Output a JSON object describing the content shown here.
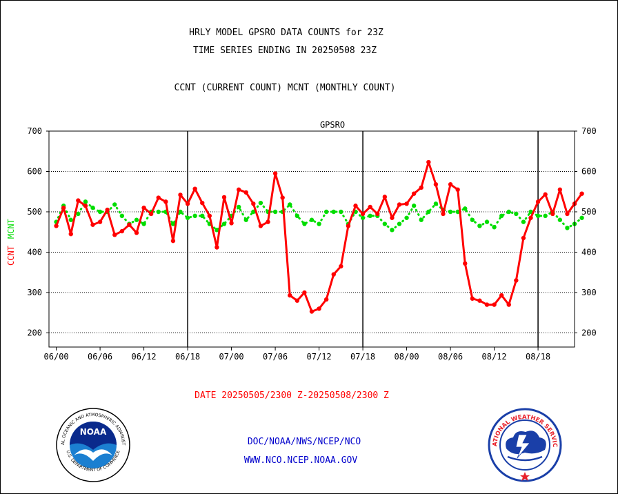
{
  "header": {
    "title_line1": "HRLY MODEL GPSRO DATA COUNTS for 23Z",
    "title_line2": "TIME SERIES ENDING IN 20250508 23Z",
    "subtitle": "CCNT (CURRENT COUNT) MCNT (MONTHLY COUNT)"
  },
  "footer": {
    "date_range": "DATE 20250505/2300 Z-20250508/2300 Z",
    "link1": "DOC/NOAA/NWS/NCEP/NCO",
    "link2": "WWW.NCO.NCEP.NOAA.GOV"
  },
  "logos": {
    "noaa_text": "NOAA",
    "noaa_ring_top": "NATIONAL OCEANIC AND ATMOSPHERIC ADMINISTRATION",
    "noaa_ring_bottom": "U.S. DEPARTMENT OF COMMERCE",
    "nws_ring": "NATIONAL WEATHER SERVICE"
  },
  "colors": {
    "ccnt": "#ff0000",
    "mcnt": "#00dd00",
    "plot_label": "#0000cc",
    "footer_date": "#ff0000",
    "footer_links": "#0000cc"
  },
  "chart_data": {
    "type": "line",
    "title": "GPSRO",
    "ylabel_left": "CCNT",
    "ylabel_right": "MCNT",
    "ylim": [
      165,
      700
    ],
    "yticks": [
      200,
      300,
      400,
      500,
      600,
      700
    ],
    "ytick_labels": [
      "200",
      "300",
      "400",
      "500",
      "600",
      "700"
    ],
    "xlim": [
      -1,
      71
    ],
    "xticks": [
      0,
      6,
      12,
      18,
      24,
      30,
      36,
      42,
      48,
      54,
      60,
      66
    ],
    "xtick_labels": [
      "06/00",
      "06/06",
      "06/12",
      "06/18",
      "07/00",
      "07/06",
      "07/12",
      "07/18",
      "08/00",
      "08/06",
      "08/12",
      "08/18"
    ],
    "day_boundaries": [
      18,
      42,
      66
    ],
    "grid": "horizontal dotted",
    "series": [
      {
        "name": "CCNT",
        "values": [
          465,
          510,
          445,
          528,
          515,
          468,
          475,
          505,
          443,
          452,
          468,
          448,
          510,
          495,
          535,
          525,
          428,
          542,
          520,
          557,
          522,
          490,
          412,
          536,
          472,
          555,
          548,
          520,
          465,
          475,
          595,
          535,
          293,
          280,
          300,
          253,
          260,
          283,
          345,
          365,
          465,
          515,
          495,
          512,
          495,
          537,
          485,
          518,
          520,
          545,
          560,
          623,
          568,
          495,
          568,
          555,
          372,
          285,
          280,
          270,
          270,
          293,
          270,
          330,
          435,
          485,
          525,
          543,
          495,
          555,
          495,
          520,
          545
        ]
      },
      {
        "name": "MCNT",
        "values": [
          475,
          515,
          480,
          495,
          525,
          510,
          500,
          500,
          518,
          490,
          470,
          480,
          470,
          500,
          500,
          500,
          470,
          500,
          485,
          490,
          490,
          470,
          455,
          470,
          490,
          512,
          480,
          500,
          522,
          500,
          500,
          500,
          518,
          490,
          470,
          480,
          470,
          500,
          500,
          500,
          470,
          500,
          485,
          490,
          490,
          470,
          455,
          470,
          485,
          515,
          480,
          500,
          520,
          505,
          500,
          500,
          508,
          480,
          465,
          475,
          462,
          490,
          500,
          495,
          475,
          500,
          490,
          490,
          500,
          480,
          460,
          470,
          485
        ]
      }
    ]
  }
}
